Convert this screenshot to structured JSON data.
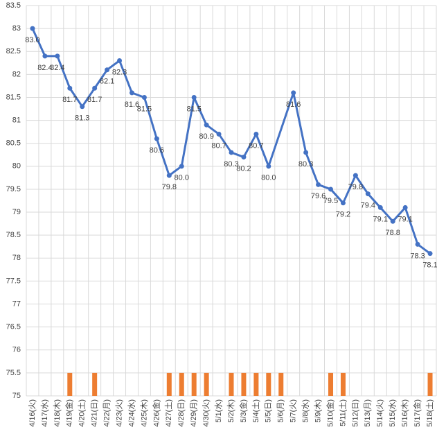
{
  "chart_data": {
    "type": "combo",
    "categories": [
      "4/16(火)",
      "4/17(水)",
      "4/18(木)",
      "4/19(金)",
      "4/20(土)",
      "4/21(日)",
      "4/22(月)",
      "4/23(火)",
      "4/24(水)",
      "4/25(木)",
      "4/26(金)",
      "4/27(土)",
      "4/28(日)",
      "4/29(月)",
      "4/30(火)",
      "5/1(水)",
      "5/2(木)",
      "5/3(金)",
      "5/4(土)",
      "5/5(日)",
      "5/6(月)",
      "5/7(火)",
      "5/8(水)",
      "5/9(木)",
      "5/10(金)",
      "5/11(土)",
      "5/12(日)",
      "5/13(月)",
      "5/14(火)",
      "5/15(水)",
      "5/16(木)",
      "5/17(金)",
      "5/18(土)"
    ],
    "series": [
      {
        "type": "line",
        "color": "#4472c4",
        "connect_gaps": true,
        "values": [
          83.0,
          82.4,
          82.4,
          81.7,
          81.3,
          81.7,
          82.1,
          82.3,
          81.6,
          81.5,
          80.6,
          79.8,
          80.0,
          81.5,
          80.9,
          80.7,
          80.3,
          80.2,
          80.7,
          80.0,
          null,
          81.6,
          80.3,
          79.6,
          79.5,
          79.2,
          79.8,
          79.4,
          79.1,
          78.8,
          79.1,
          78.3,
          78.1
        ],
        "value_labels": [
          "83.0",
          "82.4",
          "82.4",
          "81.7",
          "81.3",
          "81.7",
          "82.1",
          "82.3",
          "81.6",
          "81.5",
          "80.6",
          "79.8",
          "80.0",
          "81.5",
          "80.9",
          "80.7",
          "80.3",
          "80.2",
          "80.7",
          "80.0",
          null,
          "81.6",
          "80.3",
          "79.6",
          "79.5",
          "79.2",
          "79.8",
          "79.4",
          "79.1",
          "78.8",
          "79.1",
          "78.3",
          "78.1"
        ]
      },
      {
        "type": "bar",
        "color": "#ed7d31",
        "values": [
          null,
          null,
          null,
          75.5,
          null,
          75.5,
          null,
          null,
          null,
          null,
          null,
          75.5,
          75.5,
          75.5,
          75.5,
          null,
          75.5,
          75.5,
          75.5,
          75.5,
          75.5,
          null,
          null,
          null,
          75.5,
          75.5,
          null,
          null,
          null,
          null,
          null,
          null,
          75.5
        ]
      }
    ],
    "ylim": [
      75,
      83.5
    ],
    "yticks": [
      75,
      75.5,
      76,
      76.5,
      77,
      77.5,
      78,
      78.5,
      79,
      79.5,
      80,
      80.5,
      81,
      81.5,
      82,
      82.5,
      83,
      83.5
    ],
    "grid": true
  }
}
